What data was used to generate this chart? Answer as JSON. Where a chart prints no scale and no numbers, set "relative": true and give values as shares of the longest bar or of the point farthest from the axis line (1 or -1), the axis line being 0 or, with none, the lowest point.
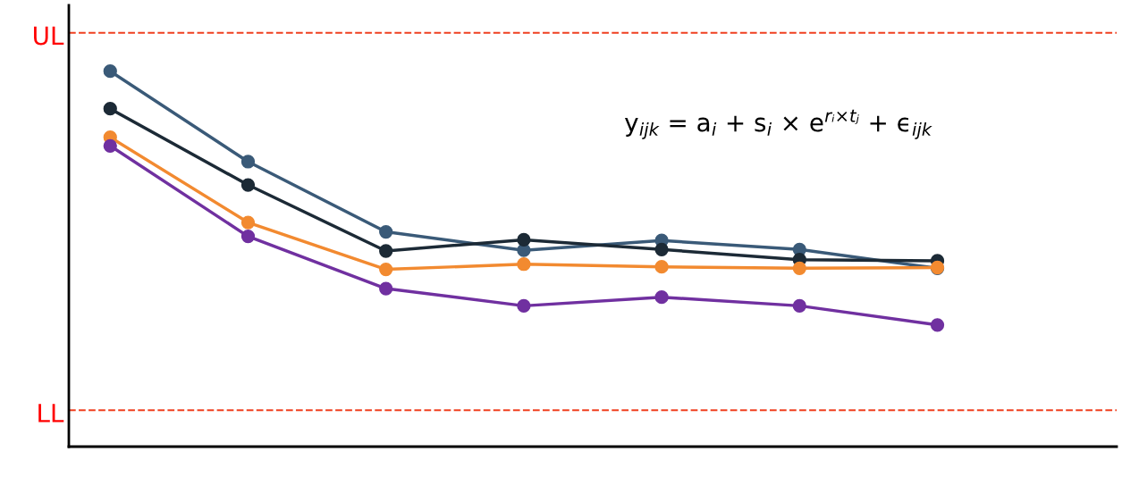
{
  "chart_data": {
    "type": "line",
    "relative": true,
    "grid": false,
    "marker": "circle",
    "categories": [
      null,
      null,
      null,
      null,
      null,
      null,
      null
    ],
    "series": [
      {
        "color": "#3a5a78",
        "values": [
          1.0,
          0.759,
          0.572,
          0.523,
          0.549,
          0.525,
          0.475
        ]
      },
      {
        "color": "#1c2a36",
        "values": [
          0.9,
          0.697,
          0.521,
          0.551,
          0.525,
          0.498,
          0.495
        ]
      },
      {
        "color": "#f28a30",
        "values": [
          0.824,
          0.597,
          0.472,
          0.486,
          0.479,
          0.475,
          0.477
        ]
      },
      {
        "color": "#7030a0",
        "values": [
          0.801,
          0.56,
          0.421,
          0.375,
          0.398,
          0.375,
          0.324
        ]
      }
    ],
    "ref_lines": [
      {
        "axis": "y",
        "value": 1.102,
        "label": "UL",
        "color": "#f04020",
        "line_style": "dashed"
      },
      {
        "axis": "y",
        "value": 0.097,
        "label": "LL",
        "color": "#f04020",
        "line_style": "dashed"
      }
    ],
    "annotations": [
      "y$_{ijk}$ = a$_{i}$ + s$_{i}$ × e$^{rᵢ×tⱼ}$ + ϵ$_{ijk}$"
    ]
  }
}
